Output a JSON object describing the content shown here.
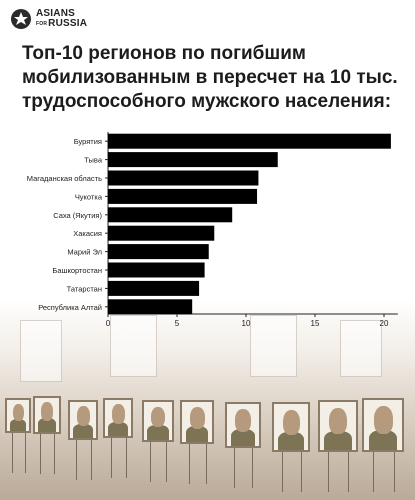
{
  "brand": {
    "line1": "ASIANS",
    "for": "FOR",
    "line2": "RUSSIA"
  },
  "title_lines": [
    "Топ-10 регионов по погибшим",
    "мобилизованным в пересчет на 10 тыс.",
    "трудоспособного мужского населения:"
  ],
  "chart_data": {
    "type": "bar",
    "orientation": "horizontal",
    "categories": [
      "Бурятия",
      "Тыва",
      "Магаданская область",
      "Чукотка",
      "Саха (Якутия)",
      "Хакасия",
      "Марий Эл",
      "Башкортостан",
      "Татарстан",
      "Республика Алтай"
    ],
    "values": [
      20.5,
      12.3,
      10.9,
      10.8,
      9.0,
      7.7,
      7.3,
      7.0,
      6.6,
      6.1
    ],
    "xlim": [
      0,
      21
    ],
    "xticks": [
      0,
      5,
      10,
      15,
      20
    ],
    "title": "",
    "xlabel": "",
    "ylabel": "",
    "grid": false,
    "bar_color": "#000000"
  },
  "photo_icons": [
    "soldier-portrait"
  ]
}
